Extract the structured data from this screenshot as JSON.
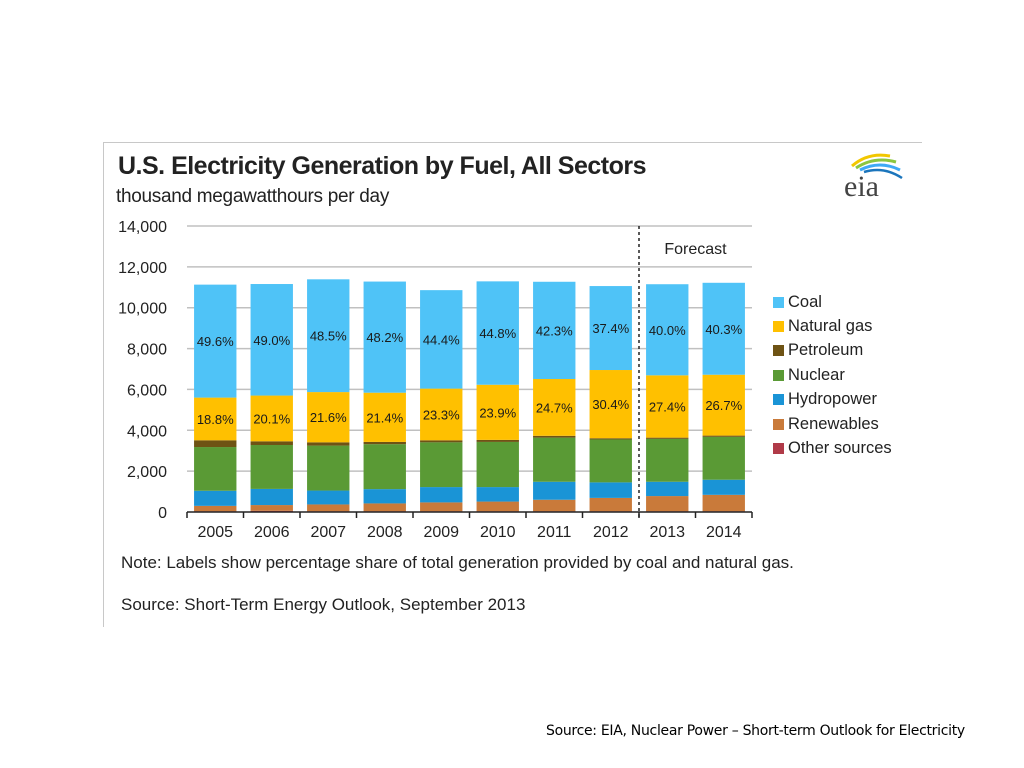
{
  "slide": {
    "source_note": "Source:  EIA, Nuclear Power – Short-term Outlook for Electricity"
  },
  "logo": {
    "text": "eia",
    "icon": "eia-logo-icon"
  },
  "chart_data": {
    "type": "bar",
    "stacked": true,
    "title": "U.S. Electricity Generation by Fuel, All Sectors",
    "subtitle": "thousand megawatthours per day",
    "xlabel": "",
    "ylabel": "thousand megawatthours per day",
    "ylim": [
      0,
      14000
    ],
    "yticks": [
      0,
      2000,
      4000,
      6000,
      8000,
      10000,
      12000,
      14000
    ],
    "ytick_labels": [
      "0",
      "2,000",
      "4,000",
      "6,000",
      "8,000",
      "10,000",
      "12,000",
      "14,000"
    ],
    "grid": true,
    "legend_position": "right",
    "categories": [
      "2005",
      "2006",
      "2007",
      "2008",
      "2009",
      "2010",
      "2011",
      "2012",
      "2013",
      "2014"
    ],
    "forecast_start": "2013",
    "forecast_label": "Forecast",
    "series": [
      {
        "name": "Other sources",
        "color": "#b03a48",
        "values": [
          40,
          60,
          40,
          40,
          40,
          40,
          40,
          40,
          40,
          40
        ]
      },
      {
        "name": "Renewables",
        "color": "#c97a3a",
        "values": [
          260,
          280,
          330,
          380,
          430,
          470,
          560,
          650,
          740,
          800
        ]
      },
      {
        "name": "Hydropower",
        "color": "#1a94d6",
        "values": [
          740,
          790,
          680,
          700,
          750,
          710,
          880,
          760,
          700,
          740
        ]
      },
      {
        "name": "Nuclear",
        "color": "#5a9a35",
        "values": [
          2140,
          2150,
          2200,
          2200,
          2190,
          2210,
          2160,
          2100,
          2100,
          2100
        ]
      },
      {
        "name": "Petroleum",
        "color": "#6e5314",
        "values": [
          330,
          180,
          160,
          110,
          100,
          100,
          90,
          60,
          60,
          60
        ]
      },
      {
        "name": "Natural gas",
        "color": "#ffc000",
        "values": [
          2090,
          2240,
          2460,
          2410,
          2530,
          2700,
          2780,
          3340,
          3050,
          2980
        ]
      },
      {
        "name": "Coal",
        "color": "#4fc3f7",
        "values": [
          5530,
          5460,
          5520,
          5440,
          4820,
          5060,
          4760,
          4110,
          4460,
          4500
        ]
      }
    ],
    "data_labels": {
      "Coal": [
        "49.6%",
        "49.0%",
        "48.5%",
        "48.2%",
        "44.4%",
        "44.8%",
        "42.3%",
        "37.4%",
        "40.0%",
        "40.3%"
      ],
      "Natural gas": [
        "18.8%",
        "20.1%",
        "21.6%",
        "21.4%",
        "23.3%",
        "23.9%",
        "24.7%",
        "30.4%",
        "27.4%",
        "26.7%"
      ]
    },
    "legend_order": [
      "Coal",
      "Natural gas",
      "Petroleum",
      "Nuclear",
      "Hydropower",
      "Renewables",
      "Other sources"
    ],
    "note": "Note: Labels show percentage share of total generation provided by coal and natural gas.",
    "source": "Source: Short-Term Energy Outlook, September 2013"
  }
}
